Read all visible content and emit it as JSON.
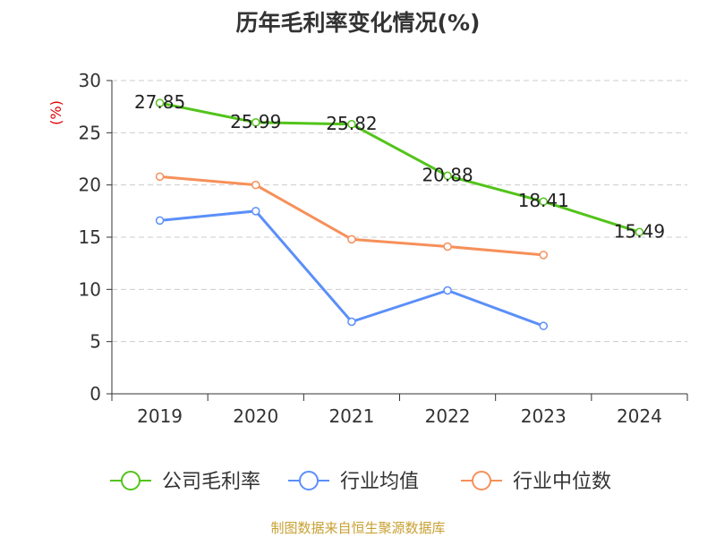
{
  "chart_data": {
    "type": "line",
    "title": "历年毛利率变化情况(%)",
    "ylabel": "(%)",
    "categories": [
      "2019",
      "2020",
      "2021",
      "2022",
      "2023",
      "2024"
    ],
    "ylim": [
      0,
      30
    ],
    "yticks": [
      0,
      5,
      10,
      15,
      20,
      25,
      30
    ],
    "grid": true,
    "legend_position": "bottom",
    "series": [
      {
        "name": "公司毛利率",
        "color": "#52c41a",
        "values": [
          27.85,
          25.99,
          25.82,
          20.88,
          18.41,
          15.49
        ],
        "labels": [
          "27.85",
          "25.99",
          "25.82",
          "20.88",
          "18.41",
          "15.49"
        ]
      },
      {
        "name": "行业均值",
        "color": "#5b8ff9",
        "values": [
          16.6,
          17.5,
          6.9,
          9.9,
          6.5,
          null
        ]
      },
      {
        "name": "行业中位数",
        "color": "#f6905a",
        "values": [
          20.8,
          20.0,
          14.8,
          14.1,
          13.3,
          null
        ]
      }
    ]
  },
  "source": "制图数据来自恒生聚源数据库"
}
